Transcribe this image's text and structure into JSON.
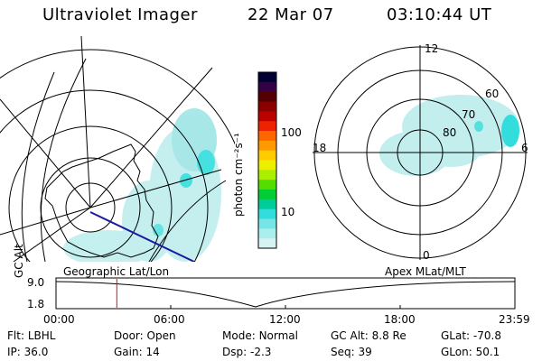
{
  "header": {
    "title": "Ultraviolet Imager",
    "date": "22 Mar 07",
    "time": "03:10:44 UT"
  },
  "left_map": {
    "caption": "Geographic Lat/Lon"
  },
  "colorbar": {
    "label": "photon cm⁻²s⁻¹",
    "ticks": [
      "100",
      "10"
    ],
    "colors": [
      "#000033",
      "#330044",
      "#550000",
      "#8a0000",
      "#bb0000",
      "#ee2200",
      "#ff6600",
      "#ff9900",
      "#ffcc00",
      "#eeee00",
      "#aaee00",
      "#55dd00",
      "#00cc33",
      "#00cc99",
      "#33dddd",
      "#77e5e5",
      "#aaeeee",
      "#d5f3f3"
    ]
  },
  "right_polar": {
    "caption": "Apex MLat/MLT",
    "mlt_labels": {
      "top": "12",
      "left": "18",
      "right": "6",
      "bottom": "0"
    },
    "lat_labels": [
      "60",
      "70",
      "80"
    ]
  },
  "timeline": {
    "ylabel": "GC Alt",
    "ymax": "9.0",
    "ymin": "1.8",
    "xticks": [
      "00:00",
      "06:00",
      "12:00",
      "18:00",
      "23:59"
    ],
    "marker_hours": 3.18
  },
  "info": {
    "flt_label": "Flt:",
    "flt_value": "LBHL",
    "door_label": "Door:",
    "door_value": "Open",
    "mode_label": "Mode:",
    "mode_value": "Normal",
    "gcalt_label": "GC Alt:",
    "gcalt_value": "8.8 Re",
    "glat_label": "GLat:",
    "glat_value": "-70.8",
    "ip_label": "IP:",
    "ip_value": "36.0",
    "gain_label": "Gain:",
    "gain_value": "14",
    "dsp_label": "Dsp:",
    "dsp_value": "-2.3",
    "seq_label": "Seq:",
    "seq_value": "39",
    "glon_label": "GLon:",
    "glon_value": "50.1"
  }
}
